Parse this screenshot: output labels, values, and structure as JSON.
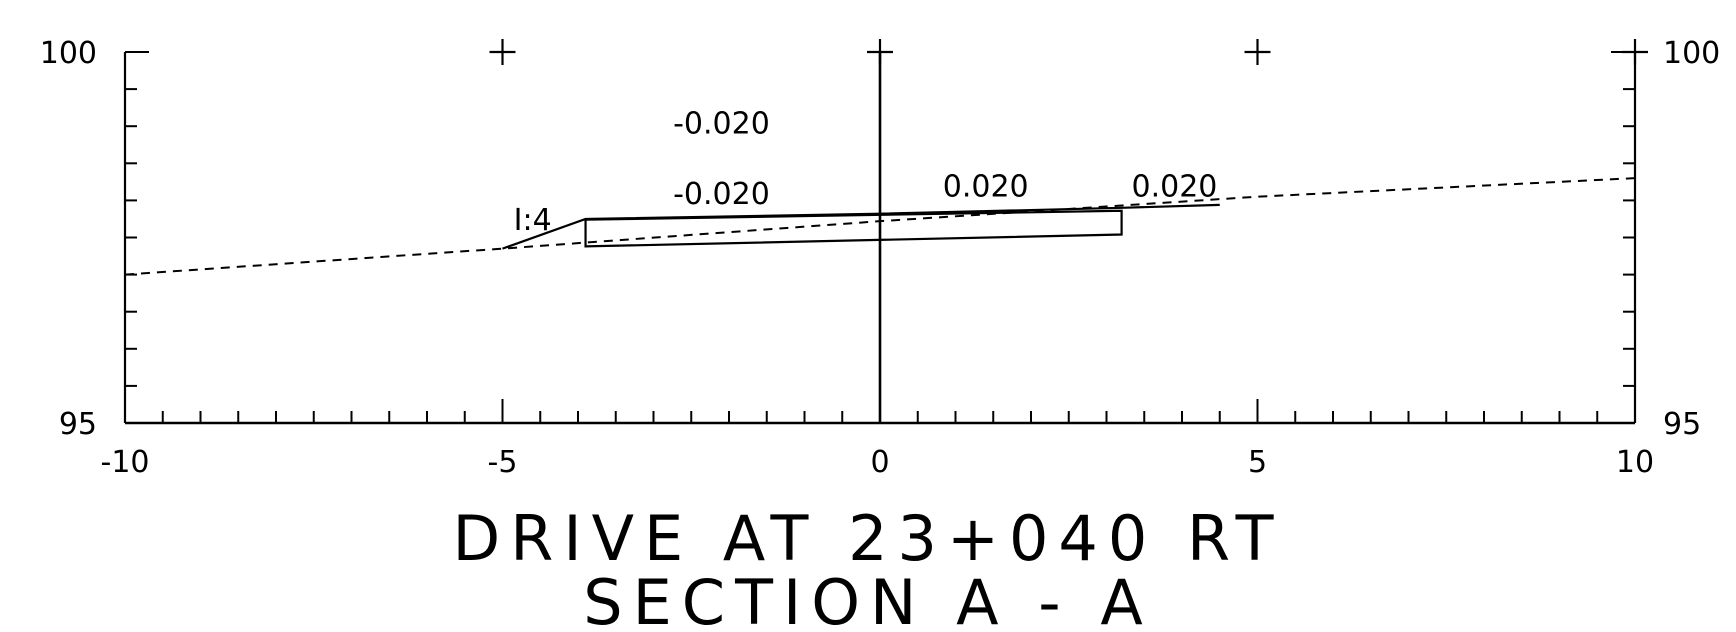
{
  "chart_data": {
    "type": "line",
    "title": "DRIVE AT 23+040 RT",
    "subtitle": "SECTION A - A",
    "xlim": [
      -10,
      10
    ],
    "ylim": [
      95,
      100
    ],
    "x_ticks": [
      "-10",
      "-5",
      "0",
      "5",
      "10"
    ],
    "y_ticks_left": [
      "95",
      "100"
    ],
    "y_ticks_right": [
      "95",
      "100"
    ],
    "grid_cross_marks": [
      [
        -5,
        100
      ],
      [
        0,
        100
      ],
      [
        5,
        100
      ],
      [
        10,
        100
      ]
    ],
    "series": [
      {
        "style": "dashed",
        "points": [
          [
            -10,
            97.0
          ],
          [
            -5,
            97.35
          ],
          [
            0,
            97.72
          ],
          [
            5,
            98.05
          ],
          [
            10,
            98.3
          ]
        ]
      },
      {
        "style": "solid",
        "points": [
          [
            -5,
            97.35
          ],
          [
            -3.9,
            97.75
          ],
          [
            0,
            97.82
          ],
          [
            3.2,
            97.9
          ],
          [
            4.5,
            97.94
          ]
        ]
      }
    ],
    "pavement_box": {
      "x_start": -3.9,
      "x_end": 3.2,
      "top": [
        97.74,
        97.86
      ],
      "bottom": [
        97.38,
        97.54
      ]
    },
    "annotations": [
      {
        "text": "-0.020",
        "x": -2.1,
        "y": 98.9
      },
      {
        "text": "-0.020",
        "x": -2.1,
        "y": 97.95
      },
      {
        "text": "0.020",
        "x": 1.4,
        "y": 98.05
      },
      {
        "text": "0.020",
        "x": 3.9,
        "y": 98.05
      },
      {
        "text": "I:4",
        "x": -4.6,
        "y": 97.6
      }
    ]
  }
}
